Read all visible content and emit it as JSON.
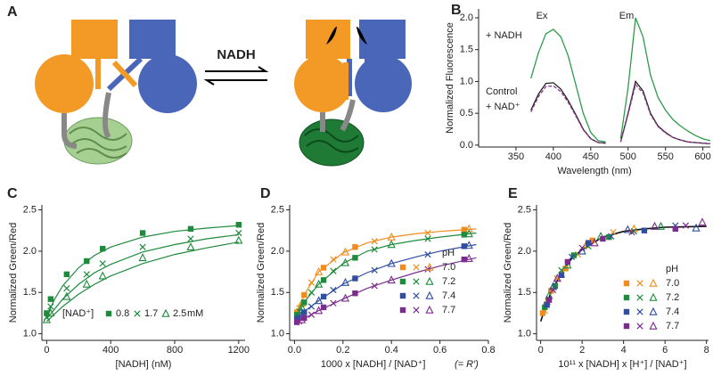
{
  "diagram": {
    "label": "A",
    "arrow_label": "NADH"
  },
  "chart_data": [
    {
      "type": "line",
      "label": "B",
      "xlabel": "Wavelength (nm)",
      "ylabel": "Normalized Fluorescence",
      "annotations": [
        "Ex",
        "Em"
      ],
      "x": [
        370,
        380,
        390,
        400,
        410,
        420,
        430,
        440,
        450,
        460,
        470,
        480,
        490,
        500,
        510,
        520,
        530,
        540,
        550,
        560,
        570,
        580,
        590,
        600,
        610
      ],
      "series": [
        {
          "name": "+ NADH",
          "color": "#2e9b4a",
          "dash": false,
          "values": [
            1.05,
            1.45,
            1.75,
            1.82,
            1.7,
            1.4,
            0.95,
            0.5,
            0.2,
            0.07,
            0.05,
            null,
            0.1,
            0.9,
            2.0,
            1.7,
            1.1,
            0.75,
            0.55,
            0.4,
            0.3,
            0.22,
            0.15,
            0.1,
            0.07
          ]
        },
        {
          "name": "Control",
          "color": "#222222",
          "dash": false,
          "values": [
            0.55,
            0.8,
            0.97,
            0.98,
            0.88,
            0.7,
            0.48,
            0.25,
            0.1,
            0.04,
            0.03,
            null,
            0.05,
            0.5,
            1.0,
            0.85,
            0.5,
            0.3,
            0.2,
            0.12,
            0.08,
            0.05,
            0.04,
            0.03,
            0.02
          ]
        },
        {
          "name": "+ NAD⁺",
          "color": "#8e3a8e",
          "dash": true,
          "values": [
            0.52,
            0.76,
            0.92,
            0.93,
            0.84,
            0.67,
            0.46,
            0.24,
            0.1,
            0.04,
            0.03,
            null,
            0.05,
            0.48,
            0.95,
            0.82,
            0.48,
            0.29,
            0.19,
            0.12,
            0.08,
            0.05,
            0.04,
            0.03,
            0.02
          ]
        }
      ],
      "xlim": [
        300,
        610
      ],
      "xticks": [
        350,
        400,
        450,
        500,
        550,
        600
      ],
      "ylim": [
        -0.03,
        2.14
      ],
      "yticks": [
        {
          "value": 0,
          "label": "0.0"
        },
        0.5,
        {
          "value": 1,
          "label": "1.0"
        },
        1.5,
        {
          "value": 2,
          "label": "2.0"
        }
      ]
    },
    {
      "type": "scatter",
      "label": "C",
      "xlabel": "[NADH] (nM)",
      "ylabel": "Normalized Green/Red",
      "legend_title": "[NAD⁺]",
      "legend_unit": "mM",
      "x": [
        0,
        25,
        125,
        250,
        350,
        600,
        900,
        1200
      ],
      "fit_x": [
        0,
        50,
        100,
        200,
        300,
        400,
        600,
        800,
        1000,
        1200
      ],
      "series": [
        {
          "name": "0.8",
          "color": "#1e8a3c",
          "marker": "square",
          "values": [
            1.25,
            1.42,
            1.72,
            1.88,
            2.03,
            2.22,
            2.27,
            2.32
          ],
          "fit": [
            1.22,
            1.42,
            1.58,
            1.8,
            1.95,
            2.05,
            2.17,
            2.24,
            2.28,
            2.31
          ]
        },
        {
          "name": "1.7",
          "color": "#1e8a3c",
          "marker": "cross",
          "values": [
            1.2,
            1.33,
            1.55,
            1.72,
            1.85,
            2.05,
            2.15,
            2.22
          ],
          "fit": [
            1.18,
            1.3,
            1.42,
            1.6,
            1.74,
            1.84,
            1.99,
            2.08,
            2.15,
            2.2
          ]
        },
        {
          "name": "2.5",
          "color": "#1e8a3c",
          "marker": "triangle",
          "values": [
            1.17,
            1.25,
            1.45,
            1.6,
            1.7,
            1.92,
            2.05,
            2.13
          ],
          "fit": [
            1.15,
            1.24,
            1.33,
            1.48,
            1.6,
            1.7,
            1.85,
            1.96,
            2.04,
            2.11
          ]
        }
      ],
      "xlim": [
        -30,
        1240
      ],
      "xticks": [
        0,
        400,
        800,
        1200
      ],
      "ylim": [
        0.92,
        2.56
      ],
      "yticks": [
        {
          "value": 1,
          "label": "1.0"
        },
        1.5,
        {
          "value": 2,
          "label": "2.0"
        },
        2.5
      ]
    },
    {
      "type": "scatter",
      "label": "D",
      "xlabel": "1000 x [NADH] / [NAD⁺]",
      "note": "(= R′)",
      "ylabel": "Normalized Green/Red",
      "legend_title": "pH",
      "fit_x": [
        0,
        0.05,
        0.1,
        0.2,
        0.3,
        0.4,
        0.5,
        0.6,
        0.75
      ],
      "series": [
        {
          "name": "7.0",
          "color": "#f08c1e",
          "fit": [
            1.2,
            1.52,
            1.75,
            1.98,
            2.1,
            2.17,
            2.21,
            2.24,
            2.27
          ],
          "groups": [
            {
              "marker": "square",
              "x": [
                0.01,
                0.04,
                0.12,
                0.25,
                0.7
              ],
              "values": [
                1.26,
                1.47,
                1.8,
                2.05,
                2.26
              ]
            },
            {
              "marker": "cross",
              "x": [
                0.02,
                0.07,
                0.16,
                0.33,
                0.55
              ],
              "values": [
                1.31,
                1.62,
                1.9,
                2.12,
                2.22
              ]
            },
            {
              "marker": "triangle",
              "x": [
                0.03,
                0.1,
                0.21,
                0.4,
                0.72
              ],
              "values": [
                1.37,
                1.75,
                1.99,
                2.17,
                2.27
              ]
            }
          ]
        },
        {
          "name": "7.2",
          "color": "#1e8c3c",
          "fit": [
            1.18,
            1.42,
            1.6,
            1.85,
            2.0,
            2.08,
            2.13,
            2.17,
            2.22
          ],
          "groups": [
            {
              "marker": "square",
              "x": [
                0.01,
                0.04,
                0.12,
                0.25,
                0.7
              ],
              "values": [
                1.23,
                1.38,
                1.65,
                1.92,
                2.2
              ]
            },
            {
              "marker": "cross",
              "x": [
                0.02,
                0.07,
                0.16,
                0.33,
                0.55
              ],
              "values": [
                1.27,
                1.5,
                1.76,
                2.02,
                2.15
              ]
            },
            {
              "marker": "triangle",
              "x": [
                0.03,
                0.1,
                0.21,
                0.4,
                0.72
              ],
              "values": [
                1.32,
                1.6,
                1.86,
                2.08,
                2.21
              ]
            }
          ]
        },
        {
          "name": "7.4",
          "color": "#2f4ea0",
          "fit": [
            1.15,
            1.29,
            1.4,
            1.6,
            1.74,
            1.85,
            1.93,
            2.0,
            2.08
          ],
          "groups": [
            {
              "marker": "square",
              "x": [
                0.01,
                0.04,
                0.12,
                0.25,
                0.7
              ],
              "values": [
                1.18,
                1.26,
                1.45,
                1.67,
                2.06
              ]
            },
            {
              "marker": "cross",
              "x": [
                0.02,
                0.07,
                0.16,
                0.33,
                0.55
              ],
              "values": [
                1.2,
                1.33,
                1.53,
                1.77,
                1.96
              ]
            },
            {
              "marker": "triangle",
              "x": [
                0.03,
                0.1,
                0.21,
                0.4,
                0.72
              ],
              "values": [
                1.23,
                1.4,
                1.62,
                1.85,
                2.07
              ]
            }
          ]
        },
        {
          "name": "7.7",
          "color": "#7b2d8e",
          "fit": [
            1.12,
            1.2,
            1.28,
            1.42,
            1.55,
            1.65,
            1.74,
            1.82,
            1.92
          ],
          "groups": [
            {
              "marker": "square",
              "x": [
                0.01,
                0.04,
                0.12,
                0.25,
                0.7
              ],
              "values": [
                1.14,
                1.19,
                1.32,
                1.49,
                1.9
              ]
            },
            {
              "marker": "cross",
              "x": [
                0.02,
                0.07,
                0.16,
                0.33,
                0.55
              ],
              "values": [
                1.15,
                1.23,
                1.37,
                1.58,
                1.78
              ]
            },
            {
              "marker": "triangle",
              "x": [
                0.03,
                0.1,
                0.21,
                0.4,
                0.72
              ],
              "values": [
                1.17,
                1.28,
                1.43,
                1.65,
                1.91
              ]
            }
          ]
        }
      ],
      "xlim": [
        -0.02,
        0.8
      ],
      "xticks": [
        {
          "value": 0,
          "label": "0.0"
        },
        0.2,
        0.4,
        0.6,
        0.8
      ],
      "ylim": [
        0.92,
        2.56
      ],
      "yticks": [
        {
          "value": 1,
          "label": "1.0"
        },
        1.5,
        {
          "value": 2,
          "label": "2.0"
        },
        2.5
      ]
    },
    {
      "type": "scatter",
      "label": "E",
      "xlabel": "10¹¹ x [NADH] x [H⁺] / [NAD⁺]",
      "ylabel": "Normalized Green/Red",
      "legend_title": "pH",
      "fit_color": "#111111",
      "fit_x": [
        0,
        0.25,
        0.5,
        1,
        1.5,
        2,
        3,
        4,
        5,
        6,
        8
      ],
      "fit": [
        1.15,
        1.34,
        1.5,
        1.74,
        1.91,
        2.02,
        2.17,
        2.24,
        2.27,
        2.29,
        2.3
      ],
      "series": [
        {
          "name": "7.0",
          "color": "#f08c1e",
          "groups": [
            {
              "marker": "square",
              "x": [
                0.1,
                0.5,
                1.2,
                2.5
              ],
              "values": [
                1.25,
                1.52,
                1.79,
                2.13
              ]
            },
            {
              "marker": "cross",
              "x": [
                0.2,
                0.8,
                1.8,
                3.5
              ],
              "values": [
                1.28,
                1.67,
                1.96,
                2.23
              ]
            },
            {
              "marker": "triangle",
              "x": [
                0.3,
                1,
                2.2,
                4.5
              ],
              "values": [
                1.39,
                1.72,
                2.08,
                2.27
              ]
            }
          ]
        },
        {
          "name": "7.2",
          "color": "#1e8c3c",
          "groups": [
            {
              "marker": "square",
              "x": [
                0.2,
                0.7,
                1.6,
                3.3
              ],
              "values": [
                1.32,
                1.58,
                1.95,
                2.17
              ]
            },
            {
              "marker": "cross",
              "x": [
                0.3,
                1,
                2.3,
                4.5
              ],
              "values": [
                1.35,
                1.77,
                2.06,
                2.24
              ]
            },
            {
              "marker": "triangle",
              "x": [
                0.4,
                1.3,
                2.9,
                5.8
              ],
              "values": [
                1.46,
                1.83,
                2.18,
                2.3
              ]
            }
          ]
        },
        {
          "name": "7.4",
          "color": "#2f4ea0",
          "groups": [
            {
              "marker": "square",
              "x": [
                0.3,
                1,
                2.3,
                5
              ],
              "values": [
                1.35,
                1.71,
                2.1,
                2.25
              ]
            },
            {
              "marker": "cross",
              "x": [
                0.4,
                1.5,
                3.4,
                6.5
              ],
              "values": [
                1.42,
                1.93,
                2.18,
                2.31
              ]
            },
            {
              "marker": "triangle",
              "x": [
                0.6,
                2,
                4.2,
                7.5
              ],
              "values": [
                1.57,
                2.0,
                2.26,
                2.28
              ]
            }
          ]
        },
        {
          "name": "7.7",
          "color": "#7b2d8e",
          "groups": [
            {
              "marker": "square",
              "x": [
                0.4,
                1.3,
                3,
                6.5
              ],
              "values": [
                1.41,
                1.87,
                2.15,
                2.27
              ]
            },
            {
              "marker": "cross",
              "x": [
                0.6,
                2,
                4.4,
                7
              ],
              "values": [
                1.53,
                2.04,
                2.23,
                2.31
              ]
            },
            {
              "marker": "triangle",
              "x": [
                0.8,
                2.6,
                5.5,
                7.8
              ],
              "values": [
                1.67,
                2.1,
                2.3,
                2.35
              ]
            }
          ]
        }
      ],
      "xlim": [
        -0.2,
        8.1
      ],
      "xticks": [
        0,
        2,
        4,
        6,
        8
      ],
      "ylim": [
        0.92,
        2.56
      ],
      "yticks": [
        {
          "value": 1,
          "label": "1.0"
        },
        1.5,
        {
          "value": 2,
          "label": "2.0"
        },
        2.5
      ]
    }
  ]
}
